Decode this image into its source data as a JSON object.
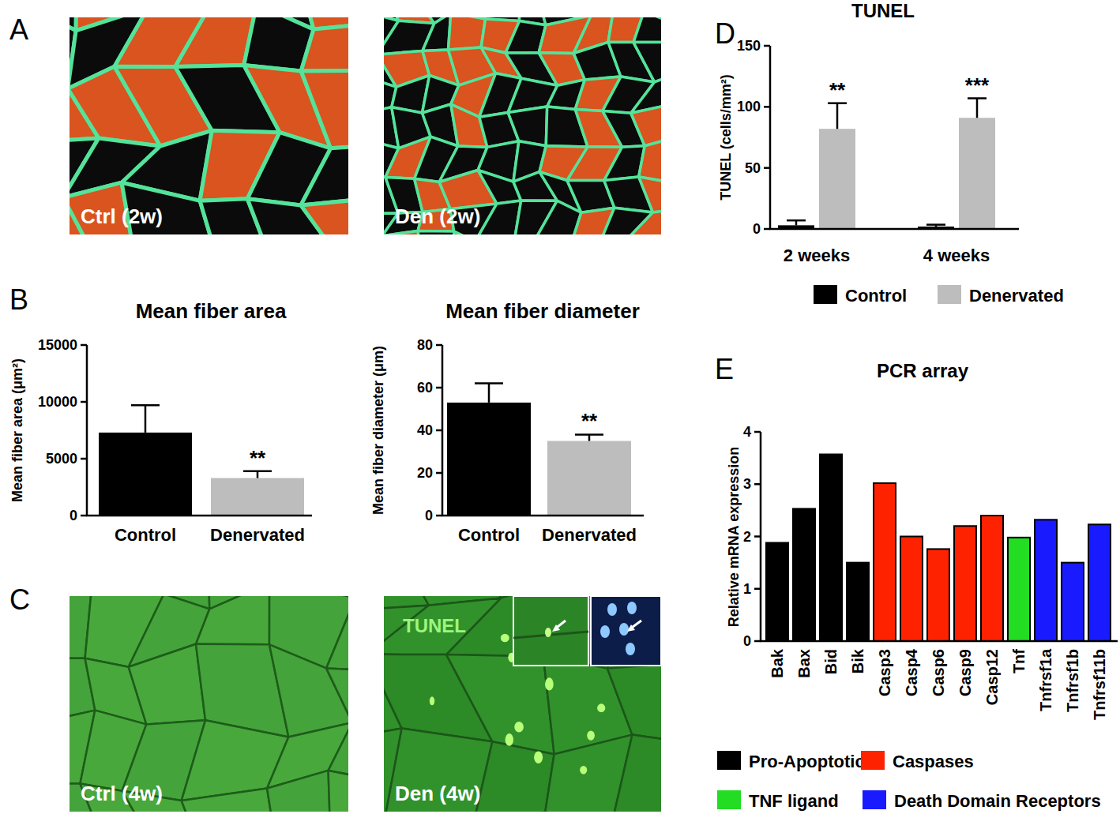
{
  "figure": {
    "panel_labels": [
      "A",
      "B",
      "C",
      "D",
      "E"
    ],
    "images": [
      {
        "label": "Ctrl (2w)"
      },
      {
        "label": "Den (2w)"
      },
      {
        "label": "Ctrl (4w)"
      },
      {
        "label": "Den (4w)",
        "stain": "TUNEL"
      }
    ]
  },
  "chart_data": [
    {
      "type": "bar",
      "title": "Mean fiber area",
      "y_label": "Mean fiber area (μm²)",
      "categories": [
        "Control",
        "Denervated"
      ],
      "values": [
        7300,
        3300
      ],
      "errors": [
        2400,
        600
      ],
      "colors": [
        "#000000",
        "#bdbdbd"
      ],
      "ylim": [
        0,
        15000
      ],
      "yticks": [
        0,
        5000,
        10000,
        15000
      ],
      "annotations": [
        {
          "text": "**",
          "category": "Denervated"
        }
      ]
    },
    {
      "type": "bar",
      "title": "Mean fiber diameter",
      "y_label": "Mean fiber diameter (μm)",
      "categories": [
        "Control",
        "Denervated"
      ],
      "values": [
        53,
        35
      ],
      "errors": [
        9,
        3
      ],
      "colors": [
        "#000000",
        "#bdbdbd"
      ],
      "ylim": [
        0,
        80
      ],
      "yticks": [
        0,
        20,
        40,
        60,
        80
      ],
      "annotations": [
        {
          "text": "**",
          "category": "Denervated"
        }
      ]
    },
    {
      "type": "bar",
      "title": "TUNEL",
      "y_label": "TUNEL (cells/mm²)",
      "categories": [
        "2 weeks",
        "4 weeks"
      ],
      "series": [
        {
          "name": "Control",
          "color": "#000000",
          "values": [
            3,
            2
          ],
          "errors": [
            4,
            1.5
          ]
        },
        {
          "name": "Denervated",
          "color": "#bdbdbd",
          "values": [
            82,
            91
          ],
          "errors": [
            21,
            16
          ]
        }
      ],
      "ylim": [
        0,
        150
      ],
      "yticks": [
        0,
        50,
        100,
        150
      ],
      "legend": "bottom",
      "annotations": [
        {
          "text": "**",
          "category": "2 weeks",
          "series": "Denervated"
        },
        {
          "text": "***",
          "category": "4 weeks",
          "series": "Denervated"
        }
      ]
    },
    {
      "type": "bar",
      "title": "PCR array",
      "y_label": "Relative mRNA expression",
      "categories": [
        "Bak",
        "Bax",
        "Bid",
        "Bik",
        "Casp3",
        "Casp4",
        "Casp6",
        "Casp9",
        "Casp12",
        "Tnf",
        "Tnfrsf1a",
        "Tnfrsf1b",
        "Tnfrsf11b"
      ],
      "series": [
        {
          "name": "Pro-Apoptotic",
          "color": "#000000",
          "values": [
            1.88,
            2.53,
            3.57,
            1.5,
            null,
            null,
            null,
            null,
            null,
            null,
            null,
            null,
            null
          ]
        },
        {
          "name": "Caspases",
          "color": "#ff2200",
          "values": [
            null,
            null,
            null,
            null,
            3.02,
            2.0,
            1.76,
            2.2,
            2.4,
            null,
            null,
            null,
            null
          ]
        },
        {
          "name": "TNF ligand",
          "color": "#22dd22",
          "values": [
            null,
            null,
            null,
            null,
            null,
            null,
            null,
            null,
            null,
            1.98,
            null,
            null,
            null
          ]
        },
        {
          "name": "Death Domain Receptors",
          "color": "#1a1aff",
          "values": [
            null,
            null,
            null,
            null,
            null,
            null,
            null,
            null,
            null,
            null,
            2.32,
            1.5,
            2.23
          ]
        }
      ],
      "ylim": [
        0,
        4
      ],
      "yticks": [
        0,
        1,
        2,
        3,
        4
      ],
      "legend": "bottom"
    }
  ]
}
